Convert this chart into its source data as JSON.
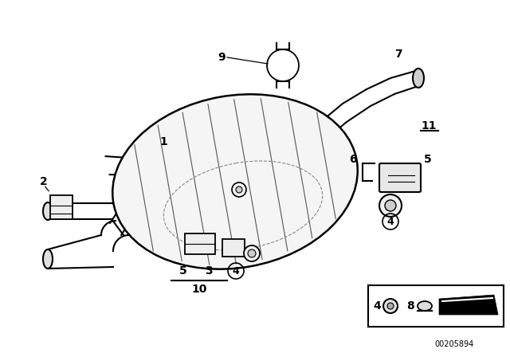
{
  "background_color": "#ffffff",
  "line_color": "#000000",
  "diagram_number": "00205894",
  "figsize": [
    6.4,
    4.48
  ],
  "dpi": 100
}
